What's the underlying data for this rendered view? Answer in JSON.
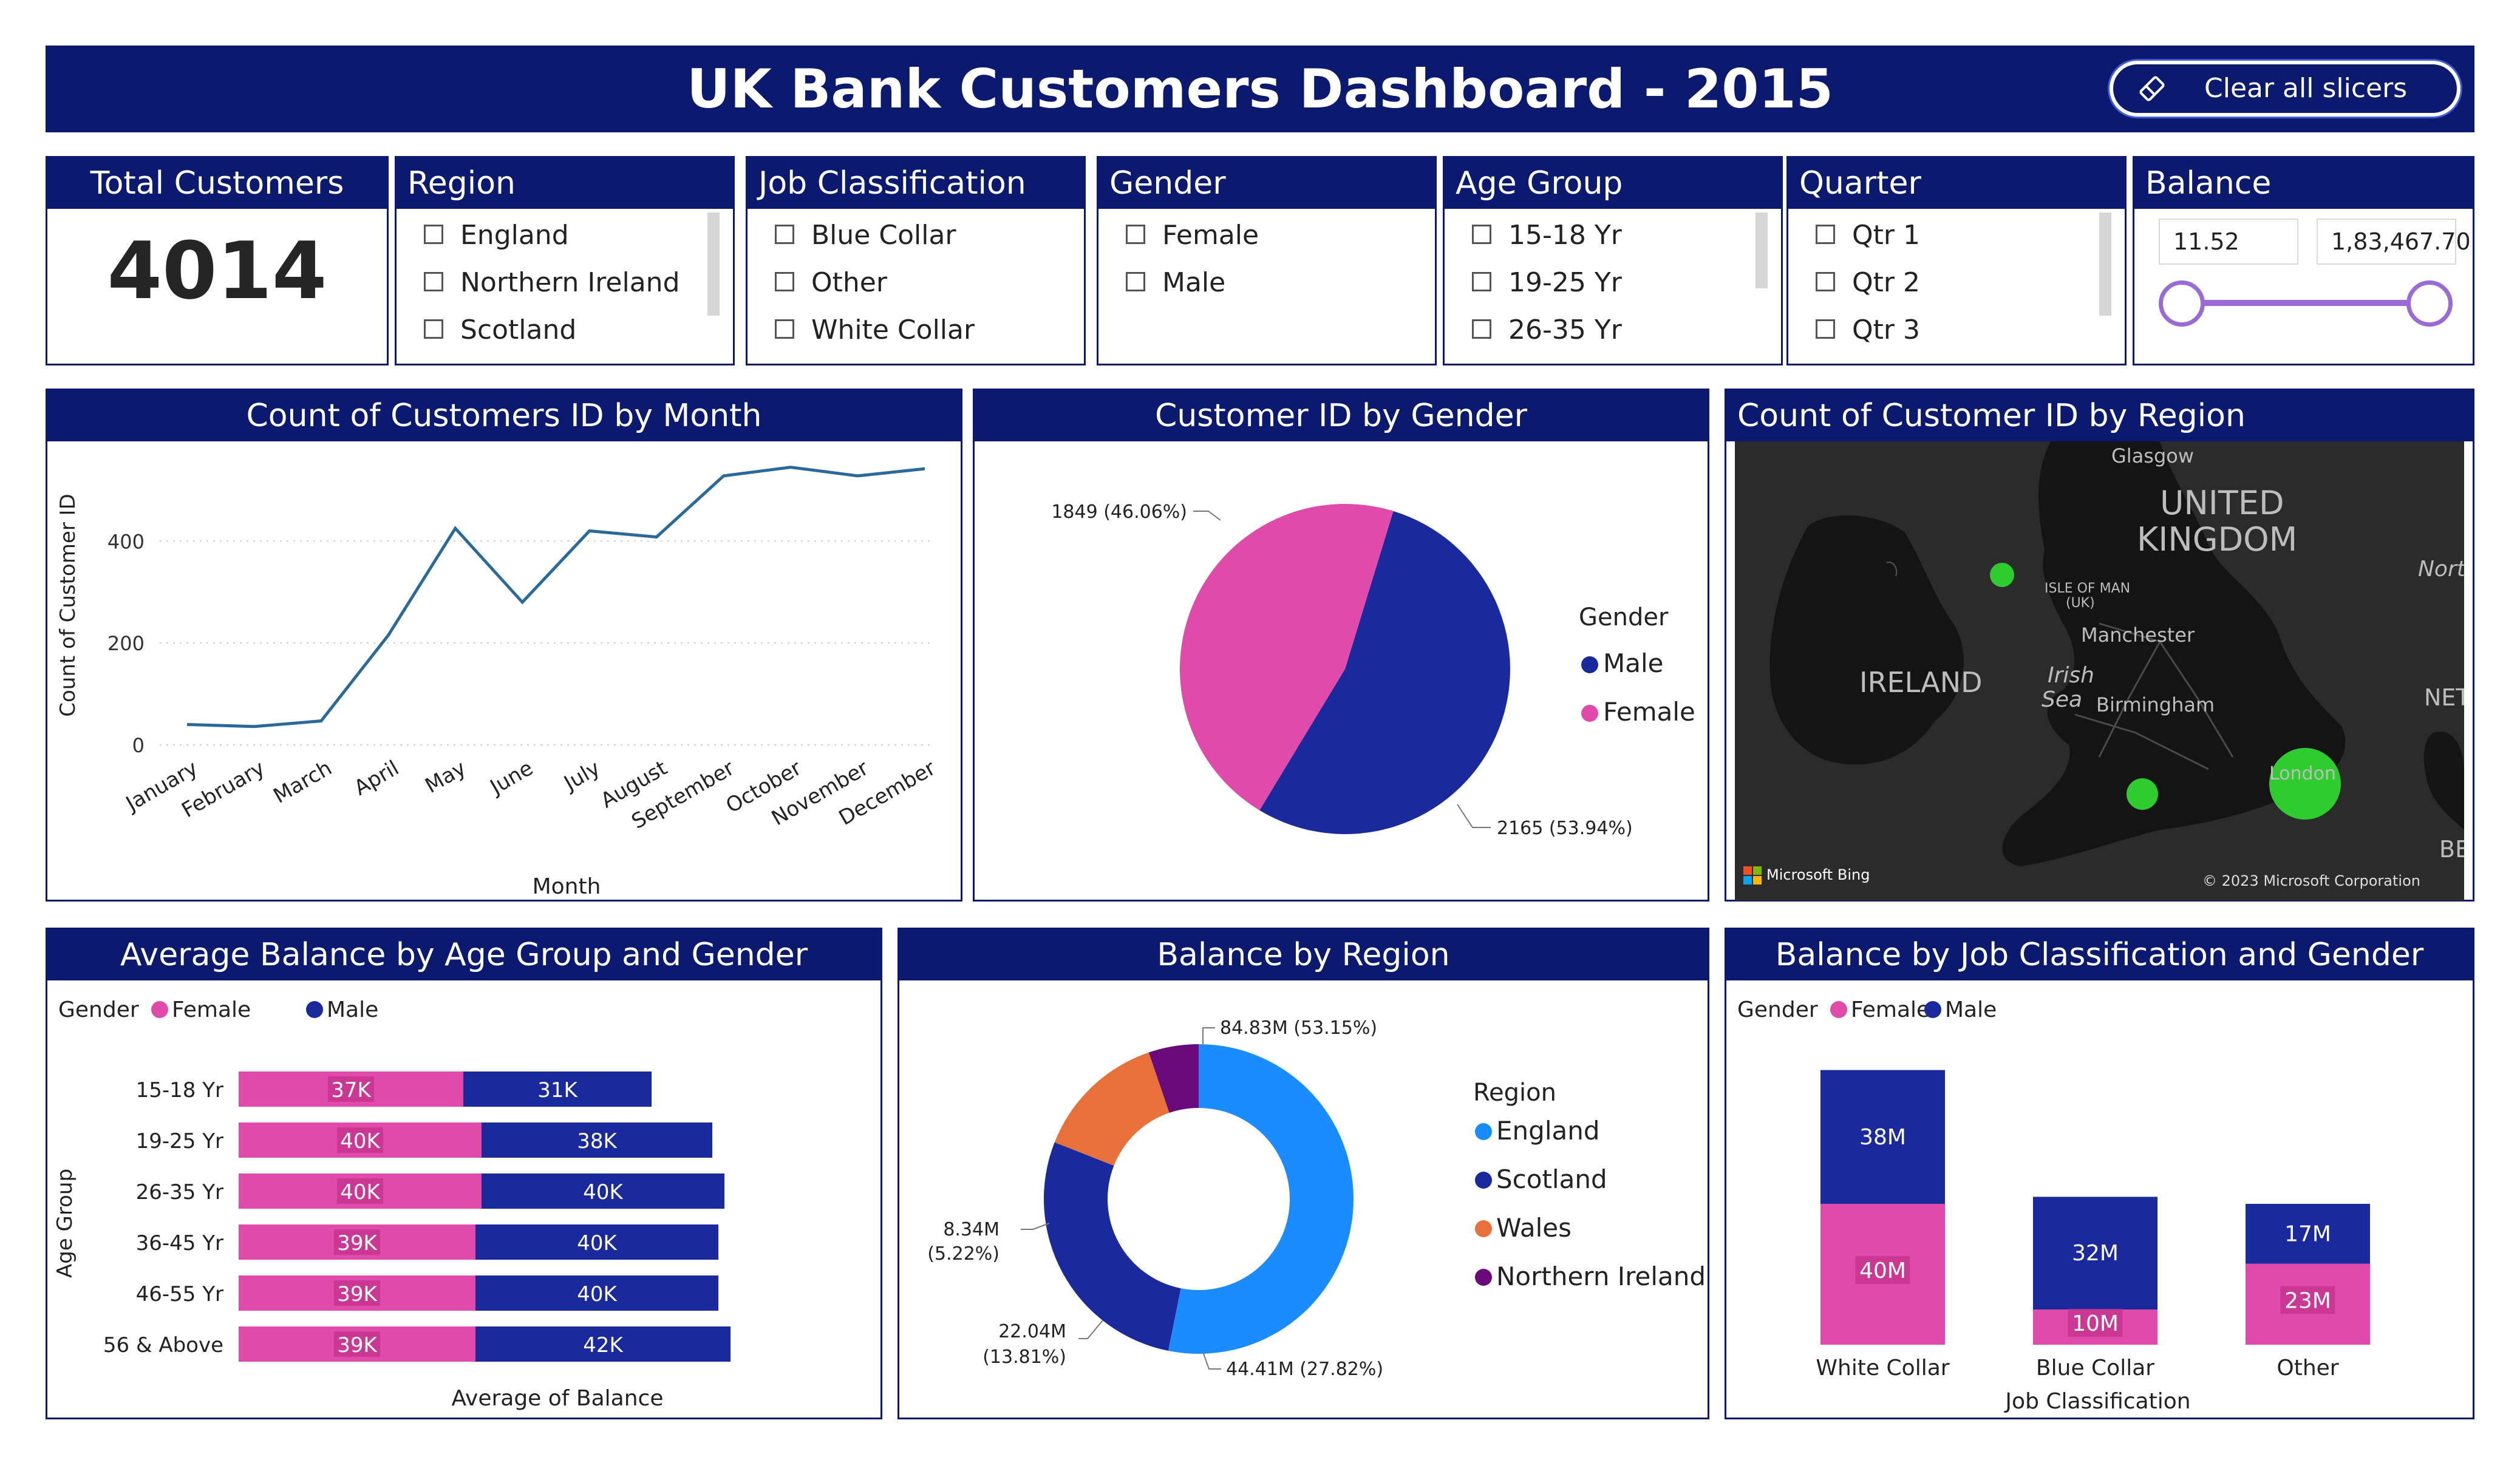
{
  "header": {
    "title": "UK Bank Customers Dashboard - 2015",
    "clear_button": "Clear all slicers",
    "icon": "eraser-icon"
  },
  "total_customers": {
    "label": "Total Customers",
    "value": "4014"
  },
  "slicers": {
    "region": {
      "title": "Region",
      "options": [
        "England",
        "Northern Ireland",
        "Scotland"
      ]
    },
    "job": {
      "title": "Job Classification",
      "options": [
        "Blue Collar",
        "Other",
        "White Collar"
      ]
    },
    "gender": {
      "title": "Gender",
      "options": [
        "Female",
        "Male"
      ]
    },
    "age": {
      "title": "Age Group",
      "options": [
        "15-18 Yr",
        "19-25 Yr",
        "26-35 Yr"
      ]
    },
    "quarter": {
      "title": "Quarter",
      "options": [
        "Qtr 1",
        "Qtr 2",
        "Qtr 3"
      ]
    },
    "balance": {
      "title": "Balance",
      "min": "11.52",
      "max": "1,83,467.70"
    }
  },
  "colors": {
    "navy": "#0b1a6e",
    "female": "#e04aaa",
    "male": "#1a2a9c",
    "line": "#2a6a9a",
    "england": "#1a8cff",
    "scotland": "#1a2a9c",
    "wales": "#e8703a",
    "ni": "#6a0a7a",
    "slider": "#9a6ad6"
  },
  "month_chart": {
    "title": "Count of Customers ID by Month",
    "chart_data": {
      "type": "line",
      "categories": [
        "January",
        "February",
        "March",
        "April",
        "May",
        "June",
        "July",
        "August",
        "September",
        "October",
        "November",
        "December"
      ],
      "values": [
        40,
        36,
        47,
        215,
        425,
        280,
        420,
        408,
        528,
        545,
        528,
        542
      ],
      "xlabel": "Month",
      "ylabel": "Count of Customer ID",
      "yticks": [
        "0",
        "200",
        "400"
      ],
      "ylim": [
        0,
        560
      ],
      "grid": true
    }
  },
  "gender_chart": {
    "title": "Customer ID by Gender",
    "chart_data": {
      "type": "pie",
      "slices": [
        {
          "name": "Male",
          "value": 2165,
          "label": "2165 (53.94%)"
        },
        {
          "name": "Female",
          "value": 1849,
          "label": "1849 (46.06%)"
        }
      ],
      "legend_title": "Gender",
      "legend": [
        "Male",
        "Female"
      ],
      "legend_position": "right"
    }
  },
  "map": {
    "title": "Count of Customer ID by Region",
    "labels": {
      "glasgow": "Glasgow",
      "uk1": "UNITED",
      "uk2": "KINGDOM",
      "isle1": "ISLE OF MAN",
      "isle2": "(UK)",
      "manchester": "Manchester",
      "ireland": "IRELAND",
      "irish1": "Irish",
      "irish2": "Sea",
      "birmingham": "Birmingham",
      "london": "London",
      "north": "Nort",
      "net": "NET",
      "be": "BE"
    },
    "bing": "Microsoft Bing",
    "copyright": "© 2023 Microsoft Corporation"
  },
  "age_chart": {
    "title": "Average Balance by Age Group and Gender",
    "legend_title": "Gender",
    "legend": [
      "Female",
      "Male"
    ],
    "chart_data": {
      "type": "bar",
      "categories": [
        "15-18 Yr",
        "19-25 Yr",
        "26-35 Yr",
        "36-45 Yr",
        "46-55 Yr",
        "56 & Above"
      ],
      "series": [
        {
          "name": "Female",
          "values": [
            37,
            40,
            40,
            39,
            39,
            39
          ],
          "labels": [
            "37K",
            "40K",
            "40K",
            "39K",
            "39K",
            "39K"
          ]
        },
        {
          "name": "Male",
          "values": [
            31,
            38,
            40,
            40,
            40,
            42
          ],
          "labels": [
            "31K",
            "38K",
            "40K",
            "40K",
            "40K",
            "42K"
          ]
        }
      ],
      "xlabel": "Average of Balance",
      "ylabel": "Age Group",
      "stacked": true
    }
  },
  "region_chart": {
    "title": "Balance by Region",
    "chart_data": {
      "type": "pie",
      "donut": true,
      "slices": [
        {
          "name": "England",
          "value": 84.83,
          "label": "84.83M (53.15%)"
        },
        {
          "name": "Scotland",
          "value": 44.41,
          "label": "44.41M (27.82%)"
        },
        {
          "name": "Wales",
          "value": 22.04,
          "label1": "22.04M",
          "label2": "(13.81%)"
        },
        {
          "name": "Northern Ireland",
          "value": 8.34,
          "label1": "8.34M",
          "label2": "(5.22%)"
        }
      ],
      "legend_title": "Region",
      "legend": [
        "England",
        "Scotland",
        "Wales",
        "Northern Ireland"
      ],
      "legend_position": "right"
    }
  },
  "job_chart": {
    "title": "Balance by Job Classification and Gender",
    "legend_title": "Gender",
    "legend": [
      "Female",
      "Male"
    ],
    "chart_data": {
      "type": "bar",
      "categories": [
        "White Collar",
        "Blue Collar",
        "Other"
      ],
      "series": [
        {
          "name": "Female",
          "values": [
            40,
            10,
            23
          ],
          "labels": [
            "40M",
            "10M",
            "23M"
          ]
        },
        {
          "name": "Male",
          "values": [
            38,
            32,
            17
          ],
          "labels": [
            "38M",
            "32M",
            "17M"
          ]
        }
      ],
      "xlabel": "Job Classification",
      "stacked": true
    }
  }
}
